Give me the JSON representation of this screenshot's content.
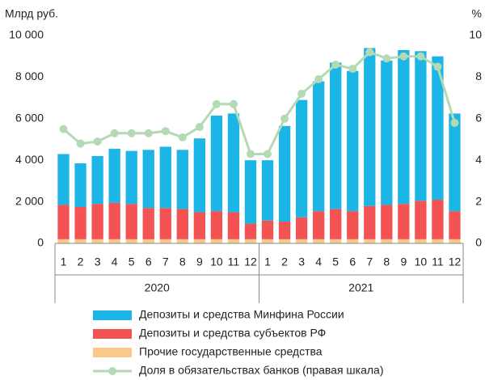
{
  "chart_data": {
    "type": "bar",
    "stacked": true,
    "y_label": "Млрд руб.",
    "y2_label": "%",
    "categories": [
      "1",
      "2",
      "3",
      "4",
      "5",
      "6",
      "7",
      "8",
      "9",
      "10",
      "11",
      "12",
      "1",
      "2",
      "3",
      "4",
      "5",
      "6",
      "7",
      "8",
      "9",
      "10",
      "11",
      "12"
    ],
    "group_labels": [
      "2020",
      "2021"
    ],
    "series": [
      {
        "name": "Прочие государственные средства",
        "color": "#f9c88a",
        "values": [
          200,
          200,
          200,
          200,
          200,
          200,
          200,
          200,
          200,
          200,
          200,
          200,
          200,
          200,
          200,
          200,
          200,
          200,
          200,
          200,
          200,
          200,
          200,
          200
        ]
      },
      {
        "name": "Депозиты и средства субъектов РФ",
        "color": "#f45353",
        "values": [
          1650,
          1550,
          1700,
          1750,
          1700,
          1500,
          1500,
          1450,
          1300,
          1350,
          1300,
          750,
          900,
          850,
          1050,
          1350,
          1450,
          1350,
          1600,
          1650,
          1700,
          1850,
          1900,
          1350
        ]
      },
      {
        "name": "Депозиты и средства Минфина России",
        "color": "#1bb5e6",
        "values": [
          2450,
          2100,
          2300,
          2600,
          2550,
          2800,
          2950,
          2850,
          3550,
          4600,
          4750,
          3050,
          2900,
          4600,
          5650,
          6250,
          7050,
          6750,
          7600,
          6950,
          7400,
          7200,
          6900,
          4700
        ]
      },
      {
        "name": "Доля в обязательствах банков (правая шкала)",
        "color": "#b5d9b5",
        "type": "line",
        "axis": "y2",
        "values": [
          5.5,
          4.8,
          4.9,
          5.3,
          5.3,
          5.3,
          5.4,
          5.1,
          5.6,
          6.7,
          6.7,
          4.3,
          4.3,
          6.0,
          7.2,
          7.9,
          8.6,
          8.4,
          9.2,
          8.9,
          9.0,
          9.0,
          8.5,
          5.8
        ]
      }
    ],
    "legend_order": [
      2,
      1,
      0,
      3
    ],
    "ylim": [
      0,
      10000
    ],
    "yticks": [
      0,
      {
        "value": 2000,
        "label": "2 000"
      },
      {
        "value": 4000,
        "label": "4 000"
      },
      {
        "value": 6000,
        "label": "6 000"
      },
      {
        "value": 8000,
        "label": "8 000"
      },
      {
        "value": 10000,
        "label": "10 000"
      }
    ],
    "y2lim": [
      0,
      10
    ],
    "y2ticks": [
      0,
      2,
      4,
      6,
      8,
      10
    ]
  }
}
